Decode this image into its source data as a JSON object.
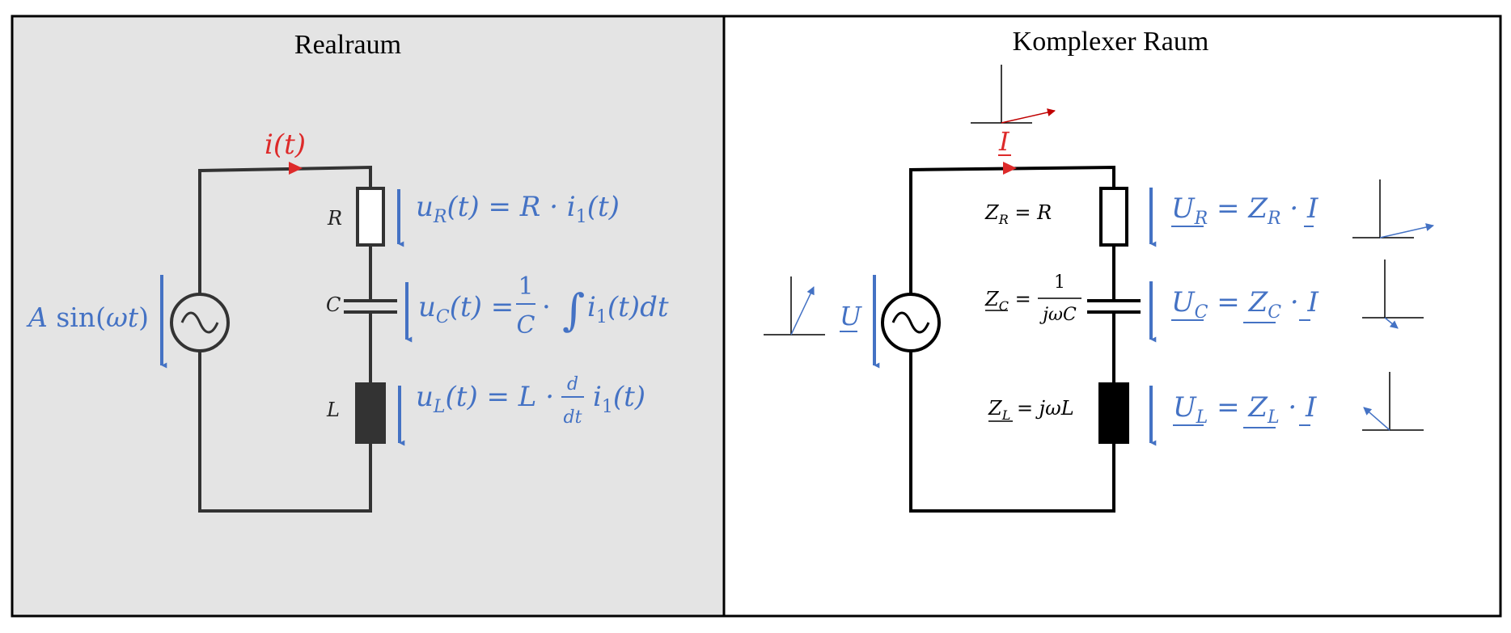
{
  "panels": {
    "left": {
      "title": "Realraum",
      "background": "#e4e4e4"
    },
    "right": {
      "title": "Komplexer Raum",
      "background": "#ffffff"
    }
  },
  "colors": {
    "voltage": "#4472c4",
    "current": "#dd2a2a",
    "wire": "#333333"
  },
  "left": {
    "current": "i(t)",
    "source": "A sin(ωt)",
    "labels": {
      "R": "R",
      "C": "C",
      "L": "L"
    },
    "eq_R": "u_R(t) = R · i_1(t)",
    "eq_C": "u_C(t) = 1/C · ∫ i_1(t)dt",
    "eq_L": "u_L(t) = L · d/dt i_1(t)"
  },
  "right": {
    "current": "I",
    "source": "U",
    "Z_R": "Z_R = R",
    "Z_C": "Z_C = 1/(jωC)",
    "Z_L": "Z_L = jωL",
    "eq_R": "U_R = Z_R · I",
    "eq_C": "U_C = Z_C · I",
    "eq_L": "U_L = Z_L · I"
  }
}
